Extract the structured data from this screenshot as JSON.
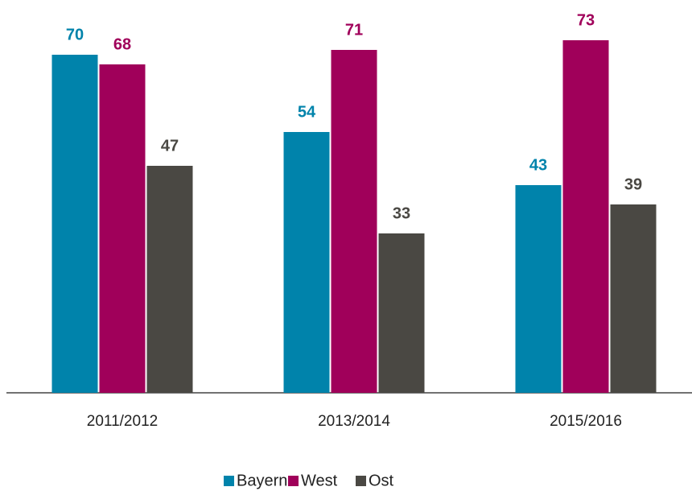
{
  "chart_data": {
    "type": "bar",
    "categories": [
      "2011/2012",
      "2013/2014",
      "2015/2016"
    ],
    "series": [
      {
        "name": "Bayern",
        "color": "#0083ab",
        "values": [
          70,
          54,
          43
        ]
      },
      {
        "name": "West",
        "color": "#a0005a",
        "values": [
          68,
          71,
          73
        ]
      },
      {
        "name": "Ost",
        "color": "#4a4843",
        "values": [
          47,
          33,
          39
        ]
      }
    ],
    "legend": "bottom"
  }
}
